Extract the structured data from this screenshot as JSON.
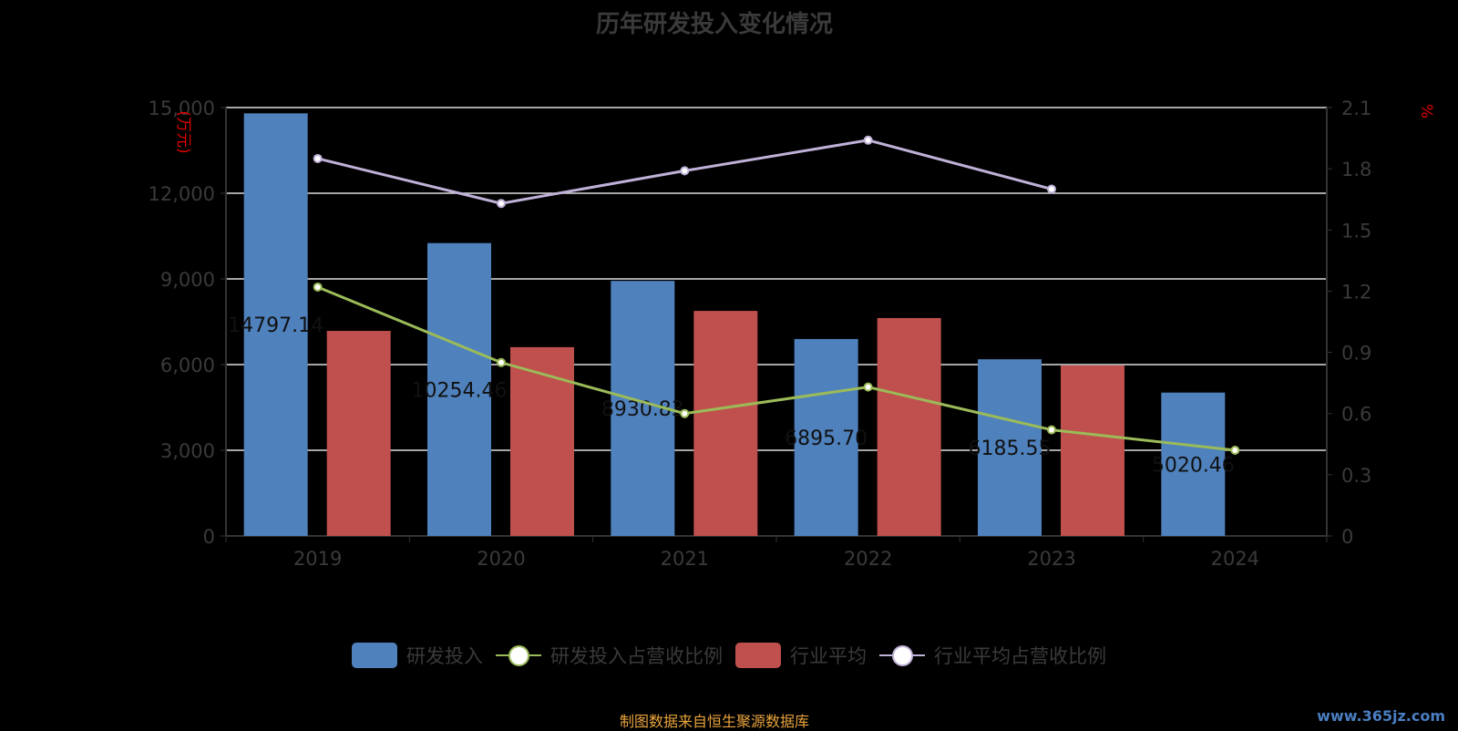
{
  "title": "历年研发投入变化情况",
  "source": "制图数据来自恒生聚源数据库",
  "watermark": "www.365jz.com",
  "colors": {
    "rd": "#4f81bd",
    "rd_ratio": "#9bbb59",
    "ind": "#c0504d",
    "ind_ratio": "#bfb1d7"
  },
  "chart_data": {
    "type": "bar",
    "title": "历年研发投入变化情况",
    "categories": [
      "2019",
      "2020",
      "2021",
      "2022",
      "2023",
      "2024"
    ],
    "ylabel": "(万元)",
    "y2label": "%",
    "ylim": [
      0,
      15000
    ],
    "y2lim": [
      0,
      2.1
    ],
    "yticks": [
      "0",
      "3,000",
      "6,000",
      "9,000",
      "12,000",
      "15,000"
    ],
    "y2ticks": [
      "0",
      "0.3",
      "0.6",
      "0.9",
      "1.2",
      "1.5",
      "1.8",
      "2.1"
    ],
    "grid": true,
    "legend_position": "bottom",
    "series": [
      {
        "name": "研发投入",
        "type": "bar",
        "axis": "left",
        "values": [
          14797.14,
          10254.46,
          8930.83,
          6895.7,
          6185.55,
          5020.46
        ],
        "labels": [
          "14797.14",
          "10254.46",
          "8930.83",
          "6895.70",
          "6185.55",
          "5020.46"
        ]
      },
      {
        "name": "研发投入占营收比例",
        "type": "line",
        "axis": "right",
        "values": [
          1.22,
          0.85,
          0.6,
          0.73,
          0.52,
          0.42
        ]
      },
      {
        "name": "行业平均",
        "type": "bar",
        "axis": "left",
        "values": [
          7180,
          6610,
          7880,
          7630,
          5970,
          null
        ]
      },
      {
        "name": "行业平均占营收比例",
        "type": "line",
        "axis": "right",
        "values": [
          1.85,
          1.63,
          1.79,
          1.94,
          1.7,
          null
        ]
      }
    ]
  }
}
